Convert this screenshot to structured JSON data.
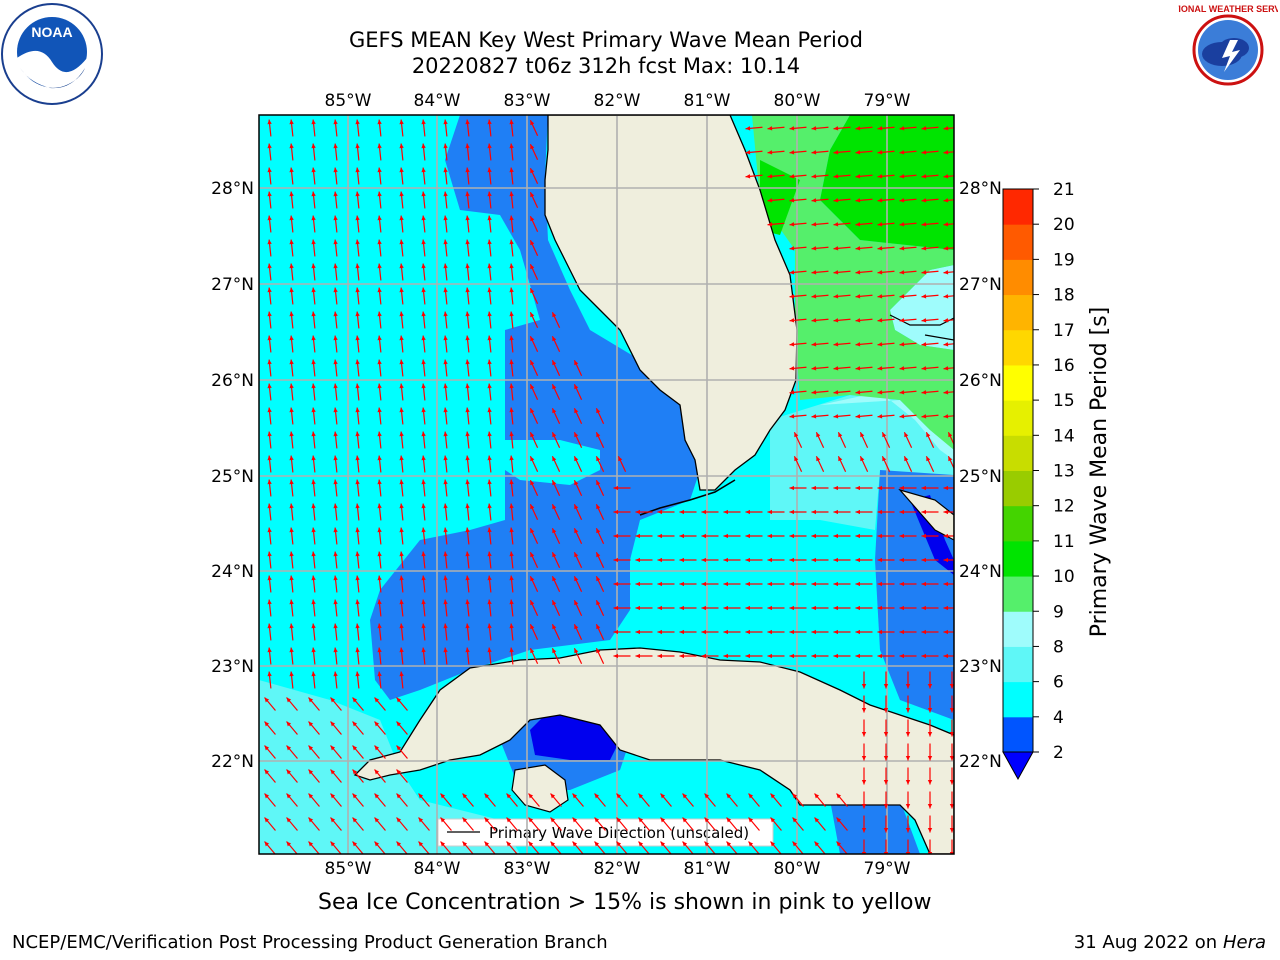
{
  "title": {
    "line1": "GEFS MEAN Key West Primary Wave Mean Period",
    "line2": "20220827 t06z 312h fcst   Max: 10.14"
  },
  "map": {
    "lon_ticks": [
      "85°W",
      "84°W",
      "83°W",
      "82°W",
      "81°W",
      "80°W",
      "79°W"
    ],
    "lat_ticks": [
      "28°N",
      "27°N",
      "26°N",
      "25°N",
      "24°N",
      "23°N",
      "22°N"
    ],
    "legend_label": "Primary Wave Direction (unscaled)",
    "colors": {
      "land": "#efeedd",
      "period_2_4": "#1f7ff5",
      "period_4_6": "#00ffff",
      "period_6_8": "#5ff7f7",
      "period_8_9": "#9ffcfc",
      "period_9_10": "#55ef6b",
      "period_10_11": "#00e400",
      "arrow": "#ff0000",
      "grid": "#b0b0b0"
    }
  },
  "colorbar": {
    "label": "Primary Wave Mean Period [s]",
    "ticks": [
      "2",
      "4",
      "6",
      "8",
      "9",
      "10",
      "11",
      "12",
      "13",
      "14",
      "15",
      "16",
      "17",
      "18",
      "19",
      "20",
      "21"
    ],
    "colors": [
      "#0055ff",
      "#00ffff",
      "#5ff7f7",
      "#9ffcfc",
      "#55ef6b",
      "#00e400",
      "#44d400",
      "#99cc00",
      "#c8dd00",
      "#e6f000",
      "#ffff00",
      "#ffd700",
      "#ffb400",
      "#ff8c00",
      "#ff5a00",
      "#ff2800"
    ],
    "extend_color": "#0000ff"
  },
  "logos": {
    "noaa_text": "NOAA",
    "nws_text": "NATIONAL WEATHER SERVICE"
  },
  "ice_note": "Sea Ice Concentration > 15% is shown in pink to yellow",
  "footer": {
    "left": "NCEP/EMC/Verification Post Processing Product Generation Branch",
    "right_date": "31 Aug 2022 on",
    "right_host": "Hera"
  }
}
